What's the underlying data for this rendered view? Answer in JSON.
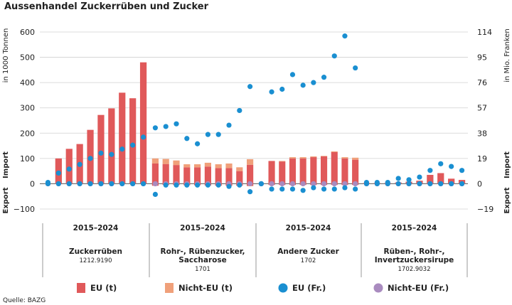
{
  "title": "Aussenhandel Zuckerrüben und Zucker",
  "source": "Quelle: BAZG",
  "chart_data": {
    "type": "bar",
    "left_axis": {
      "label": "in 1000 Tonnen",
      "ylim": [
        -100,
        600
      ],
      "ticks": [
        "600",
        "500",
        "400",
        "300",
        "200",
        "100",
        "0",
        "−100"
      ]
    },
    "right_axis": {
      "label": "in Mio. Franken",
      "ylim": [
        -19,
        114
      ],
      "ticks": [
        "114",
        "95",
        "76",
        "57",
        "38",
        "19",
        "0",
        "−19"
      ]
    },
    "side_labels": {
      "import": "Import",
      "export": "Export"
    },
    "legend_position": "bottom",
    "grid": "horizontal",
    "legend": [
      {
        "name": "EU (t)",
        "color": "#e0595a",
        "shape": "bar"
      },
      {
        "name": "Nicht-EU (t)",
        "color": "#f0a07a",
        "shape": "bar"
      },
      {
        "name": "EU (Fr.)",
        "color": "#1a8fd1",
        "shape": "dot"
      },
      {
        "name": "Nicht-EU (Fr.)",
        "color": "#a98bbf",
        "shape": "dot"
      }
    ],
    "groups": [
      {
        "years": "2015–2024",
        "name_lines": [
          "Zuckerrüben"
        ],
        "code": "1212.9190",
        "import_eu_t": [
          0,
          100,
          138,
          157,
          213,
          272,
          298,
          360,
          338,
          480
        ],
        "import_noneu_t": [
          0,
          0,
          0,
          0,
          0,
          0,
          0,
          0,
          0,
          0
        ],
        "export_eu_t": [
          0,
          0,
          0,
          0,
          0,
          0,
          0,
          0,
          0,
          0
        ],
        "export_noneu_t": [
          0,
          0,
          0,
          0,
          0,
          0,
          0,
          0,
          0,
          0
        ],
        "import_eu_fr": [
          1.0,
          8,
          11,
          14.5,
          19,
          23,
          22,
          26,
          29,
          35
        ],
        "import_noneu_fr": [
          0,
          0,
          0,
          0,
          0,
          0,
          0,
          0,
          0,
          0
        ],
        "export_eu_fr": [
          0,
          0,
          0,
          0,
          0,
          0,
          0,
          0,
          0,
          0
        ],
        "export_noneu_fr": [
          0,
          0,
          0,
          0,
          0,
          0,
          0,
          0,
          0,
          0
        ]
      },
      {
        "years": "2015–2024",
        "name_lines": [
          "Rohr-, Rübenzucker,",
          "Saccharose"
        ],
        "code": "1701",
        "import_eu_t": [
          80,
          78,
          74,
          65,
          65,
          68,
          62,
          62,
          50,
          75
        ],
        "import_noneu_t": [
          20,
          20,
          18,
          12,
          12,
          15,
          15,
          18,
          15,
          22
        ],
        "export_eu_t": [
          -8,
          -5,
          -5,
          -6,
          -6,
          -7,
          -8,
          -8,
          -8,
          -8
        ],
        "export_noneu_t": [
          0,
          0,
          0,
          0,
          0,
          0,
          0,
          0,
          0,
          -2
        ],
        "import_eu_fr": [
          42,
          43,
          45,
          34,
          30,
          37,
          37,
          44,
          55,
          73
        ],
        "import_noneu_fr": [
          0,
          0,
          0,
          0,
          0,
          0,
          0,
          0,
          0,
          0
        ],
        "export_eu_fr": [
          -8,
          -1,
          -1,
          -1,
          -1,
          -1,
          -1,
          -2,
          -1,
          -6
        ],
        "export_noneu_fr": [
          0,
          0,
          0,
          0,
          0,
          0,
          0,
          0,
          0,
          0
        ]
      },
      {
        "years": "2015–2024",
        "name_lines": [
          "Andere Zucker"
        ],
        "code": "1702",
        "import_eu_t": [
          0,
          90,
          88,
          100,
          100,
          105,
          108,
          125,
          100,
          95
        ],
        "import_noneu_t": [
          0,
          0,
          2,
          5,
          5,
          3,
          2,
          3,
          5,
          8
        ],
        "export_eu_t": [
          0,
          -5,
          -5,
          -5,
          -5,
          -5,
          -5,
          -5,
          -5,
          -5
        ],
        "export_noneu_t": [
          0,
          0,
          0,
          0,
          0,
          0,
          0,
          0,
          0,
          0
        ],
        "import_eu_fr": [
          0,
          69,
          71,
          82,
          74,
          76,
          80,
          96,
          111,
          87
        ],
        "import_noneu_fr": [
          0,
          0,
          0,
          0,
          0,
          0,
          0,
          0,
          0,
          0
        ],
        "export_eu_fr": [
          0,
          -4,
          -4,
          -4,
          -5,
          -3,
          -4,
          -4,
          -3,
          -4
        ],
        "export_noneu_fr": [
          0,
          0,
          0,
          0,
          0,
          0,
          0,
          0,
          0,
          0
        ]
      },
      {
        "years": "2015–2024",
        "name_lines": [
          "Rüben-, Rohr-,",
          "Invertzuckersirupe"
        ],
        "code": "1702.9032",
        "import_eu_t": [
          3,
          3,
          3,
          5,
          8,
          12,
          35,
          42,
          20,
          15
        ],
        "import_noneu_t": [
          0,
          0,
          0,
          0,
          0,
          0,
          0,
          0,
          0,
          0
        ],
        "export_eu_t": [
          0,
          0,
          0,
          0,
          0,
          0,
          0,
          0,
          0,
          0
        ],
        "export_noneu_t": [
          0,
          0,
          0,
          0,
          0,
          0,
          0,
          0,
          0,
          0
        ],
        "import_eu_fr": [
          1,
          1,
          1,
          4,
          3,
          5,
          10,
          15,
          13,
          10
        ],
        "import_noneu_fr": [
          0,
          0,
          0,
          0,
          0,
          0,
          0,
          0,
          0,
          0
        ],
        "export_eu_fr": [
          0,
          0,
          0,
          0,
          0,
          0,
          0,
          0,
          0,
          0
        ],
        "export_noneu_fr": [
          0,
          0,
          0,
          0,
          0,
          0,
          0,
          0,
          0,
          0
        ]
      }
    ]
  }
}
